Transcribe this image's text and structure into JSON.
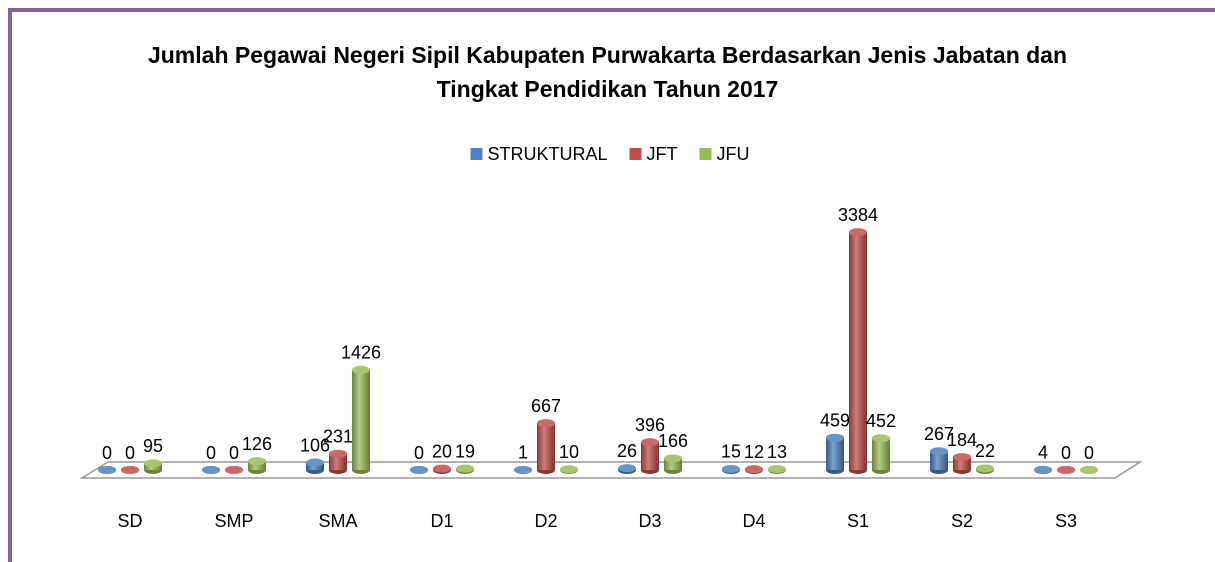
{
  "chart_data": {
    "type": "bar3d",
    "title": "Jumlah Pegawai Negeri Sipil Kabupaten Purwakarta Berdasarkan Jenis Jabatan dan Tingkat Pendidikan Tahun 2017",
    "categories": [
      "SD",
      "SMP",
      "SMA",
      "D1",
      "D2",
      "D3",
      "D4",
      "S1",
      "S2",
      "S3"
    ],
    "series": [
      {
        "name": "STRUKTURAL",
        "color": "#4f81bd",
        "values": [
          0,
          0,
          106,
          0,
          1,
          26,
          15,
          459,
          267,
          4
        ]
      },
      {
        "name": "JFT",
        "color": "#c0504d",
        "values": [
          0,
          0,
          231,
          20,
          667,
          396,
          12,
          3384,
          184,
          0
        ]
      },
      {
        "name": "JFU",
        "color": "#9bbb59",
        "values": [
          95,
          126,
          1426,
          19,
          10,
          166,
          13,
          452,
          22,
          0
        ]
      }
    ],
    "ylim": [
      0,
      3500
    ],
    "grid": false,
    "legend": "top"
  }
}
